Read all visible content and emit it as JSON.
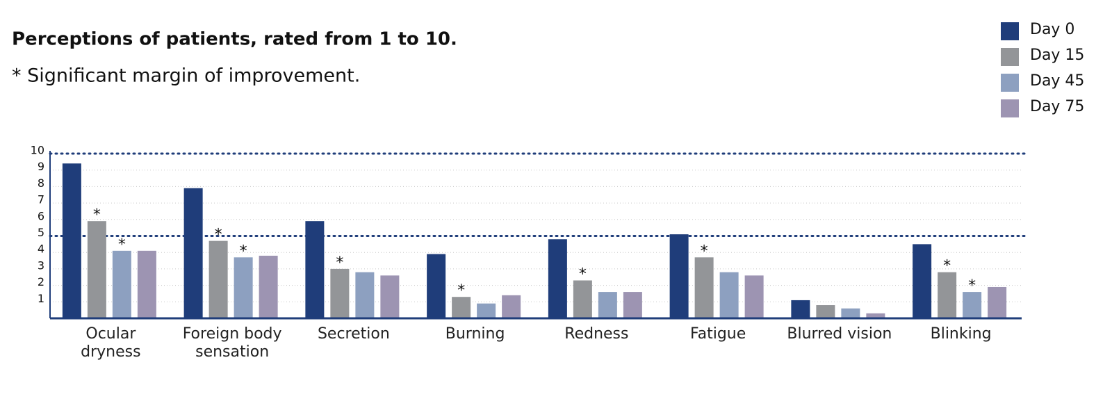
{
  "chart_data": {
    "type": "bar",
    "title": "Perceptions of patients, rated from 1 to 10.",
    "subtitle": "* Significant margin of improvement.",
    "categories": [
      "Ocular\ndryness",
      "Foreign body\nsensation",
      "Secretion",
      "Burning",
      "Redness",
      "Fatigue",
      "Blurred vision",
      "Blinking"
    ],
    "series": [
      {
        "name": "Day 0",
        "color": "#1f3d7a",
        "values": [
          9.4,
          7.9,
          5.9,
          3.9,
          4.8,
          5.1,
          1.1,
          4.5
        ],
        "asterisks": [
          null,
          null,
          null,
          null,
          null,
          null,
          null,
          null
        ]
      },
      {
        "name": "Day 15",
        "color": "#939598",
        "values": [
          5.9,
          4.7,
          3.0,
          1.3,
          2.3,
          3.7,
          0.8,
          2.8
        ],
        "asterisks": [
          "*",
          "*",
          "*",
          "*",
          "*",
          "*",
          null,
          "*"
        ]
      },
      {
        "name": "Day 45",
        "color": "#8da0c0",
        "values": [
          4.1,
          3.7,
          2.8,
          0.9,
          1.6,
          2.8,
          0.6,
          1.6
        ],
        "asterisks": [
          "*",
          "*",
          null,
          null,
          null,
          null,
          null,
          "*"
        ]
      },
      {
        "name": "Day 75",
        "color": "#9d94b2",
        "values": [
          4.1,
          3.8,
          2.6,
          1.4,
          1.6,
          2.6,
          0.3,
          1.9
        ],
        "asterisks": [
          null,
          null,
          null,
          null,
          null,
          null,
          null,
          null
        ]
      }
    ],
    "ylim": [
      0,
      10
    ],
    "yticks": [
      1,
      2,
      3,
      4,
      5,
      6,
      7,
      8,
      9,
      10
    ],
    "reference_lines": [
      5,
      10
    ],
    "grid": true,
    "legend": "top-right"
  }
}
